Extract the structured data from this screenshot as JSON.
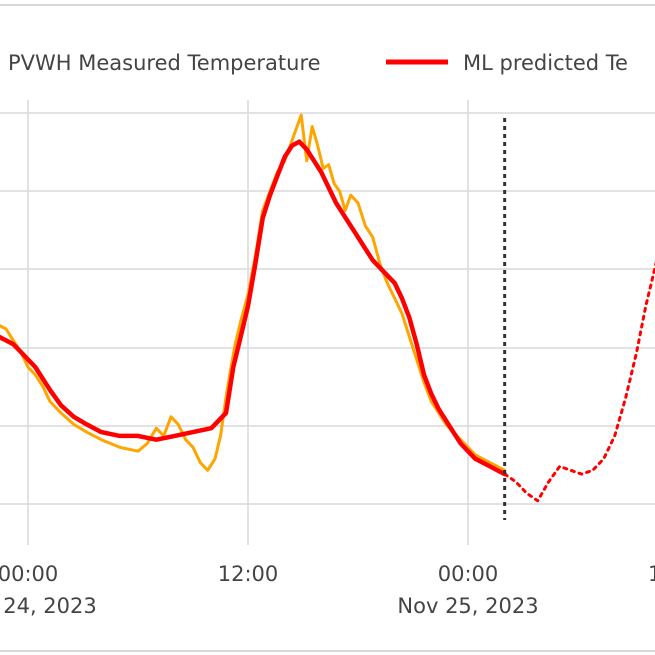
{
  "chart_data": {
    "type": "line",
    "legend": {
      "placement": "top",
      "items": [
        "PVWH Measured Temperature",
        "ML predicted Te"
      ]
    },
    "x_ticks": [
      {
        "time": "00:00",
        "date": "24, 2023"
      },
      {
        "time": "12:00",
        "date": ""
      },
      {
        "time": "00:00",
        "date": "Nov 25, 2023"
      }
    ],
    "edge_tick_glyph": "1",
    "y_gridlines": 6,
    "grid": true,
    "forecast_marker_hour": 26,
    "x_range_hours": [
      -1.6,
      34.3
    ],
    "y_range": [
      0,
      100
    ],
    "series": [
      {
        "name": "PVWH Measured Temperature",
        "color": "#ffa500",
        "style": "solid",
        "x_hours": [
          -1.6,
          -1.2,
          -0.8,
          -0.4,
          0.0,
          0.4,
          0.8,
          1.2,
          1.8,
          2.5,
          3.2,
          4.0,
          5.0,
          6.0,
          6.5,
          7.0,
          7.4,
          7.8,
          8.2,
          8.6,
          9.0,
          9.4,
          9.8,
          10.2,
          10.5,
          10.8,
          11.0,
          11.3,
          11.6,
          12.0,
          12.4,
          12.8,
          13.2,
          13.6,
          14.0,
          14.3,
          14.6,
          14.9,
          15.2,
          15.5,
          15.8,
          16.1,
          16.4,
          16.7,
          17.0,
          17.3,
          17.6,
          18.0,
          18.4,
          18.8,
          19.2,
          19.6,
          20.0,
          20.4,
          20.8,
          21.2,
          21.6,
          22.0,
          22.4,
          22.8,
          23.2,
          23.6,
          24.0,
          24.4,
          24.8,
          25.2,
          25.6,
          26.0
        ],
        "y": [
          45,
          44,
          41,
          38,
          34,
          32,
          29,
          25,
          22,
          19,
          17,
          15,
          13,
          12,
          14,
          18,
          16,
          21,
          19,
          15,
          13,
          9,
          7,
          10,
          16,
          26,
          32,
          40,
          46,
          53,
          63,
          75,
          80,
          85,
          88,
          92,
          96,
          100,
          88,
          97,
          92,
          86,
          87,
          82,
          80,
          75,
          79,
          77,
          71,
          68,
          61,
          56,
          52,
          48,
          42,
          36,
          30,
          25,
          22,
          19,
          17,
          15,
          13,
          11,
          10,
          9,
          8,
          7
        ]
      },
      {
        "name": "ML predicted Te",
        "color": "#ff0000",
        "style": "solid",
        "x_hours": [
          -1.6,
          -1.2,
          -0.8,
          -0.4,
          0.0,
          0.4,
          0.8,
          1.2,
          1.8,
          2.5,
          3.2,
          4.0,
          5.0,
          6.0,
          7.0,
          8.0,
          9.0,
          10.0,
          10.8,
          11.2,
          11.6,
          12.0,
          12.4,
          12.8,
          13.2,
          13.6,
          14.0,
          14.4,
          14.8,
          15.2,
          15.6,
          16.0,
          16.4,
          16.8,
          17.2,
          17.6,
          18.0,
          18.4,
          18.8,
          19.2,
          19.6,
          20.0,
          20.4,
          20.8,
          21.2,
          21.6,
          22.0,
          22.4,
          22.8,
          23.2,
          23.6,
          24.0,
          24.4,
          24.8,
          25.2,
          25.6,
          26.0
        ],
        "y": [
          42,
          41,
          40,
          38,
          36,
          34,
          31,
          28,
          24,
          21,
          19,
          17,
          16,
          16,
          15,
          16,
          17,
          18,
          22,
          34,
          42,
          50,
          61,
          73,
          79,
          84,
          89,
          92,
          93,
          91,
          88,
          85,
          81,
          77,
          74,
          71,
          68,
          65,
          62,
          60,
          58,
          56,
          52,
          47,
          40,
          32,
          27,
          23,
          20,
          17,
          14,
          12,
          10,
          9,
          8,
          7,
          6
        ]
      },
      {
        "name": "",
        "color": "#ff0000",
        "style": "dotted",
        "x_hours": [
          26.0,
          26.6,
          27.2,
          27.8,
          28.4,
          29.0,
          29.6,
          30.2,
          30.8,
          31.4,
          32.0,
          32.6,
          33.2,
          33.7,
          34.3
        ],
        "y": [
          6,
          4,
          1,
          -1,
          4,
          8,
          7,
          6,
          7,
          10,
          16,
          26,
          38,
          50,
          62
        ]
      }
    ]
  }
}
